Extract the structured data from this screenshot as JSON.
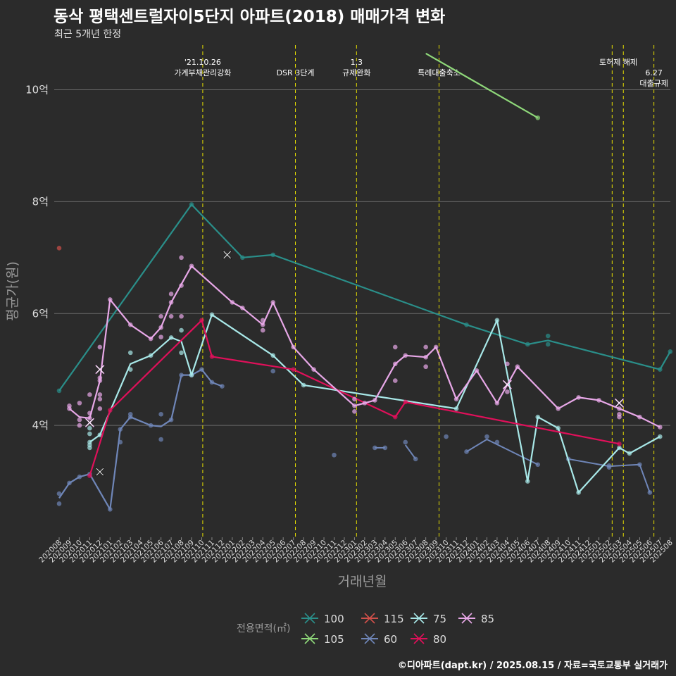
{
  "chart_data": {
    "type": "line",
    "title": "동삭 평택센트럴자이5단지 아파트(2018) 매매가격 변화",
    "subtitle": "최근 5개년 한정",
    "xlabel": "거래년월",
    "ylabel": "평균가(원)",
    "caption": "©디아파트(dapt.kr) / 2025.08.15 / 자료=국토교통부 실거래가",
    "legend_title": "전용면적(㎡)",
    "ylim": [
      2.0,
      10.8
    ],
    "yticks": [
      4,
      6,
      8,
      10
    ],
    "ytick_labels": [
      "4억",
      "6억",
      "8억",
      "10억"
    ],
    "categories": [
      "202008",
      "202009",
      "202010",
      "202011",
      "202012",
      "202101",
      "202102",
      "202103",
      "202104",
      "202105",
      "202106",
      "202107",
      "202108",
      "202109",
      "202110",
      "202111",
      "202112",
      "202201",
      "202202",
      "202203",
      "202204",
      "202205",
      "202206",
      "202207",
      "202208",
      "202209",
      "202210",
      "202211",
      "202212",
      "202301",
      "202302",
      "202303",
      "202304",
      "202305",
      "202306",
      "202307",
      "202308",
      "202309",
      "202310",
      "202311",
      "202312",
      "202401",
      "202402",
      "202403",
      "202404",
      "202405",
      "202406",
      "202407",
      "202408",
      "202409",
      "202410",
      "202411",
      "202412",
      "202501",
      "202502",
      "202503",
      "202504",
      "202505",
      "202506",
      "202507",
      "202508"
    ],
    "events": [
      {
        "x": 14.1,
        "label": "'21.10.26\n가계부채관리강화"
      },
      {
        "x": 23.2,
        "label": "DSR 3단계"
      },
      {
        "x": 29.2,
        "label": "1.3\n규제완화"
      },
      {
        "x": 37.3,
        "label": "특례대출축소"
      },
      {
        "x": 54.3,
        "label": "토허제 해제"
      },
      {
        "x": 55.4,
        "label": "토허제 해제"
      },
      {
        "x": 58.4,
        "label": "6.27\n대출규제"
      }
    ],
    "event_labels_at": [
      {
        "x": 14.1,
        "line": 0,
        "text": "'21.10.26"
      },
      {
        "x": 14.1,
        "line": 1,
        "text": "가계부채관리강화"
      },
      {
        "x": 23.2,
        "line": 1,
        "text": "DSR 3단계"
      },
      {
        "x": 29.2,
        "line": 0,
        "text": "1.3"
      },
      {
        "x": 29.2,
        "line": 1,
        "text": "규제완화"
      },
      {
        "x": 37.3,
        "line": 1,
        "text": "특례대출축소"
      },
      {
        "x": 54.9,
        "line": 0,
        "text": "토허제 해제"
      },
      {
        "x": 58.4,
        "line": 1,
        "text": "6.27"
      },
      {
        "x": 58.4,
        "line": 2,
        "text": "대출규제"
      }
    ],
    "series": [
      {
        "name": "100",
        "color": "#2a8f8a",
        "line": [
          [
            0,
            4.62
          ],
          [
            13,
            7.95
          ],
          [
            18,
            7.0
          ],
          [
            21,
            7.05
          ],
          [
            40,
            5.8
          ],
          [
            46,
            5.45
          ],
          [
            48,
            5.52
          ],
          [
            59,
            5.0
          ],
          [
            60,
            5.32
          ]
        ],
        "points": [
          [
            0,
            4.62
          ],
          [
            13,
            7.95
          ],
          [
            18,
            7.0
          ],
          [
            21,
            7.05
          ],
          [
            40,
            5.8
          ],
          [
            46,
            5.45
          ],
          [
            48,
            5.6
          ],
          [
            48,
            5.45
          ],
          [
            59,
            5.0
          ],
          [
            60,
            5.32
          ]
        ],
        "cancels": [
          [
            16.5,
            7.05
          ]
        ]
      },
      {
        "name": "105",
        "color": "#8fd87a",
        "line": [
          [
            36,
            10.65
          ],
          [
            47,
            9.5
          ]
        ],
        "points": [
          [
            47,
            9.5
          ]
        ],
        "cancels": []
      },
      {
        "name": "115",
        "color": "#d0504a",
        "line": [],
        "points": [
          [
            0,
            7.17
          ]
        ],
        "cancels": []
      },
      {
        "name": "60",
        "color": "#6f86b8",
        "line": [
          [
            0,
            2.7
          ],
          [
            1,
            2.97
          ],
          [
            2,
            3.08
          ],
          [
            3,
            3.13
          ],
          [
            5,
            2.5
          ],
          [
            6,
            3.93
          ],
          [
            7,
            4.15
          ],
          [
            9,
            4.0
          ],
          [
            10,
            3.98
          ],
          [
            11,
            4.1
          ],
          [
            12,
            4.9
          ],
          [
            13,
            4.9
          ],
          [
            14,
            5.0
          ],
          [
            15,
            4.77
          ],
          [
            16,
            4.7
          ]
        ],
        "points": [
          [
            0,
            2.6
          ],
          [
            0,
            2.78
          ],
          [
            1,
            2.97
          ],
          [
            2,
            3.08
          ],
          [
            3,
            3.13
          ],
          [
            5,
            2.5
          ],
          [
            6,
            3.7
          ],
          [
            6,
            3.93
          ],
          [
            7,
            4.15
          ],
          [
            7,
            4.2
          ],
          [
            9,
            4.0
          ],
          [
            10,
            3.75
          ],
          [
            10,
            4.2
          ],
          [
            11,
            4.1
          ],
          [
            12,
            4.9
          ],
          [
            13,
            4.9
          ],
          [
            14,
            5.0
          ],
          [
            15,
            4.77
          ],
          [
            16,
            4.7
          ],
          [
            21,
            4.97
          ],
          [
            27,
            3.47
          ],
          [
            31,
            3.6
          ],
          [
            32,
            3.6
          ],
          [
            34,
            3.7
          ],
          [
            35,
            3.4
          ],
          [
            38,
            3.8
          ],
          [
            40,
            3.53
          ],
          [
            42,
            3.8
          ],
          [
            43,
            3.7
          ],
          [
            47,
            3.3
          ],
          [
            50,
            3.4
          ],
          [
            54,
            3.28
          ],
          [
            54,
            3.25
          ],
          [
            57,
            3.3
          ],
          [
            58,
            2.8
          ]
        ],
        "segments": [
          [
            [
              31,
              3.6
            ],
            [
              32,
              3.6
            ]
          ],
          [
            [
              34,
              3.65
            ],
            [
              35,
              3.4
            ]
          ],
          [
            [
              40,
              3.53
            ],
            [
              42,
              3.75
            ],
            [
              47,
              3.3
            ]
          ],
          [
            [
              50,
              3.4
            ],
            [
              54,
              3.27
            ],
            [
              57,
              3.3
            ],
            [
              58,
              2.8
            ]
          ]
        ],
        "cancels": [
          [
            4,
            3.17
          ]
        ]
      },
      {
        "name": "75",
        "color": "#a8e8e8",
        "line": [
          [
            3,
            3.7
          ],
          [
            4,
            3.83
          ],
          [
            7,
            5.1
          ],
          [
            9,
            5.25
          ],
          [
            11,
            5.57
          ],
          [
            12,
            5.5
          ],
          [
            13,
            4.9
          ],
          [
            15,
            5.98
          ],
          [
            21,
            5.25
          ],
          [
            24,
            4.72
          ],
          [
            39,
            4.3
          ],
          [
            43,
            5.88
          ],
          [
            46,
            3.0
          ],
          [
            47,
            4.15
          ],
          [
            49,
            3.95
          ],
          [
            51,
            2.8
          ],
          [
            55,
            3.6
          ],
          [
            56,
            3.5
          ],
          [
            59,
            3.8
          ]
        ],
        "points": [
          [
            3,
            3.6
          ],
          [
            3,
            3.65
          ],
          [
            3,
            3.7
          ],
          [
            3,
            3.85
          ],
          [
            3,
            3.95
          ],
          [
            4,
            3.83
          ],
          [
            7,
            5.0
          ],
          [
            7,
            5.3
          ],
          [
            9,
            5.25
          ],
          [
            11,
            5.57
          ],
          [
            12,
            5.3
          ],
          [
            12,
            5.7
          ],
          [
            13,
            4.9
          ],
          [
            15,
            5.98
          ],
          [
            21,
            5.25
          ],
          [
            24,
            4.72
          ],
          [
            39,
            4.3
          ],
          [
            43,
            5.88
          ],
          [
            46,
            3.0
          ],
          [
            47,
            4.15
          ],
          [
            49,
            3.95
          ],
          [
            51,
            2.8
          ],
          [
            55,
            3.6
          ],
          [
            56,
            3.5
          ],
          [
            59,
            3.8
          ]
        ],
        "cancels": []
      },
      {
        "name": "80",
        "color": "#e0105a",
        "line": [
          [
            3,
            3.1
          ],
          [
            5,
            4.27
          ],
          [
            14,
            5.88
          ],
          [
            15,
            5.23
          ],
          [
            23,
            5.0
          ],
          [
            33,
            4.15
          ],
          [
            34,
            4.42
          ],
          [
            55,
            3.67
          ]
        ],
        "points": [
          [
            3,
            3.1
          ],
          [
            5,
            4.27
          ],
          [
            14,
            5.88
          ],
          [
            15,
            5.23
          ],
          [
            23,
            5.0
          ],
          [
            33,
            4.15
          ],
          [
            34,
            4.42
          ],
          [
            55,
            3.67
          ]
        ],
        "cancels": []
      },
      {
        "name": "85",
        "color": "#e8a8e8",
        "line": [
          [
            1,
            4.3
          ],
          [
            2,
            4.15
          ],
          [
            3,
            4.13
          ],
          [
            4,
            4.8
          ],
          [
            5,
            6.25
          ],
          [
            7,
            5.8
          ],
          [
            9,
            5.55
          ],
          [
            10,
            5.75
          ],
          [
            11,
            6.2
          ],
          [
            13,
            6.85
          ],
          [
            17,
            6.2
          ],
          [
            18,
            6.1
          ],
          [
            20,
            5.8
          ],
          [
            21,
            6.2
          ],
          [
            23,
            5.4
          ],
          [
            25,
            5.0
          ],
          [
            29,
            4.35
          ],
          [
            30,
            4.4
          ],
          [
            31,
            4.45
          ],
          [
            33,
            5.1
          ],
          [
            34,
            5.25
          ],
          [
            36,
            5.22
          ],
          [
            37,
            5.4
          ],
          [
            39,
            4.47
          ],
          [
            41,
            4.98
          ],
          [
            43,
            4.4
          ],
          [
            45,
            5.05
          ],
          [
            49,
            4.3
          ],
          [
            51,
            4.5
          ],
          [
            53,
            4.45
          ],
          [
            55,
            4.3
          ],
          [
            57,
            4.15
          ],
          [
            59,
            3.97
          ]
        ],
        "points": [
          [
            1,
            4.3
          ],
          [
            1,
            4.35
          ],
          [
            2,
            4.0
          ],
          [
            2,
            4.1
          ],
          [
            2,
            4.4
          ],
          [
            3,
            4.13
          ],
          [
            3,
            4.22
          ],
          [
            3,
            4.55
          ],
          [
            4,
            4.3
          ],
          [
            4,
            4.47
          ],
          [
            4,
            4.55
          ],
          [
            4,
            4.8
          ],
          [
            4,
            4.85
          ],
          [
            4,
            5.4
          ],
          [
            5,
            6.25
          ],
          [
            7,
            5.8
          ],
          [
            9,
            5.55
          ],
          [
            10,
            5.75
          ],
          [
            10,
            5.95
          ],
          [
            10,
            5.58
          ],
          [
            11,
            6.2
          ],
          [
            11,
            5.95
          ],
          [
            11,
            6.35
          ],
          [
            12,
            6.5
          ],
          [
            12,
            5.95
          ],
          [
            12,
            7.0
          ],
          [
            13,
            6.85
          ],
          [
            17,
            6.2
          ],
          [
            18,
            6.1
          ],
          [
            20,
            5.8
          ],
          [
            20,
            5.88
          ],
          [
            20,
            5.7
          ],
          [
            21,
            6.2
          ],
          [
            23,
            5.4
          ],
          [
            25,
            5.0
          ],
          [
            29,
            4.35
          ],
          [
            29,
            4.47
          ],
          [
            29,
            4.25
          ],
          [
            30,
            4.4
          ],
          [
            31,
            4.45
          ],
          [
            33,
            5.1
          ],
          [
            33,
            5.4
          ],
          [
            33,
            4.8
          ],
          [
            34,
            5.25
          ],
          [
            36,
            5.22
          ],
          [
            36,
            5.4
          ],
          [
            36,
            5.05
          ],
          [
            37,
            5.4
          ],
          [
            39,
            4.47
          ],
          [
            41,
            4.98
          ],
          [
            43,
            4.4
          ],
          [
            45,
            5.05
          ],
          [
            44,
            5.1
          ],
          [
            44,
            4.6
          ],
          [
            49,
            4.3
          ],
          [
            51,
            4.5
          ],
          [
            53,
            4.45
          ],
          [
            55,
            4.3
          ],
          [
            55,
            4.15
          ],
          [
            55,
            4.2
          ],
          [
            57,
            4.15
          ],
          [
            59,
            3.97
          ]
        ],
        "cancels": [
          [
            3,
            4.05
          ],
          [
            4,
            5.0
          ],
          [
            44,
            4.73
          ],
          [
            55,
            4.4
          ]
        ]
      }
    ]
  }
}
